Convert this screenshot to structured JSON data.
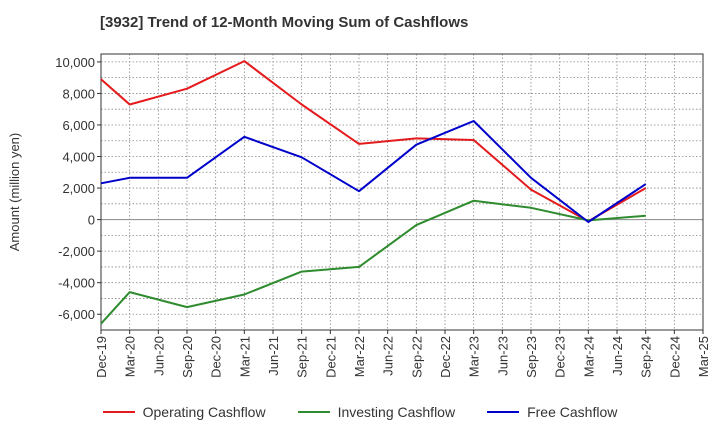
{
  "title": "[3932]  Trend of 12-Month Moving Sum of Cashflows",
  "chart_data": {
    "type": "line",
    "title": "[3932]  Trend of 12-Month Moving Sum of Cashflows",
    "xlabel": "",
    "ylabel": "Amount (million yen)",
    "categories": [
      "Dec-19",
      "Mar-20",
      "Jun-20",
      "Sep-20",
      "Dec-20",
      "Mar-21",
      "Jun-21",
      "Sep-21",
      "Dec-21",
      "Mar-22",
      "Jun-22",
      "Sep-22",
      "Dec-22",
      "Mar-23",
      "Jun-23",
      "Sep-23",
      "Dec-23",
      "Mar-24",
      "Jun-24",
      "Sep-24",
      "Dec-24",
      "Mar-25"
    ],
    "ylim": [
      -7000,
      10500
    ],
    "yticks": [
      -6000,
      -4000,
      -2000,
      0,
      2000,
      4000,
      6000,
      8000,
      10000
    ],
    "ytick_labels": [
      "-6,000",
      "-4,000",
      "-2,000",
      "0",
      "2,000",
      "4,000",
      "6,000",
      "8,000",
      "10,000"
    ],
    "grid": true,
    "legend_position": "bottom",
    "series": [
      {
        "name": "Operating Cashflow",
        "color": "#e41a1c",
        "values": [
          8900,
          7300,
          null,
          8300,
          null,
          10050,
          null,
          7300,
          null,
          4800,
          null,
          5150,
          null,
          5050,
          null,
          1900,
          null,
          -100,
          null,
          2000,
          null,
          null
        ]
      },
      {
        "name": "Investing Cashflow",
        "color": "#2e8b2e",
        "values": [
          -6600,
          -4600,
          null,
          -5550,
          null,
          -4750,
          null,
          -3300,
          null,
          -3000,
          null,
          -350,
          null,
          1200,
          null,
          750,
          null,
          -50,
          null,
          250,
          null,
          null
        ]
      },
      {
        "name": "Free Cashflow",
        "color": "#0000cc",
        "values": [
          2300,
          2650,
          null,
          2650,
          null,
          5250,
          null,
          3950,
          null,
          1800,
          null,
          4750,
          null,
          6250,
          null,
          2650,
          null,
          -150,
          null,
          2250,
          null,
          null
        ]
      }
    ]
  }
}
